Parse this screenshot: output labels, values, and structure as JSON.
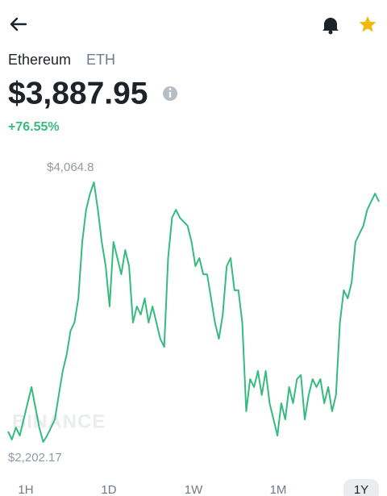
{
  "asset": {
    "name": "Ethereum",
    "symbol": "ETH"
  },
  "price": "$3,887.95",
  "change": "+76.55%",
  "watermark": "BINANCE",
  "time_ranges": [
    "1H",
    "1D",
    "1W",
    "1M",
    "1Y"
  ],
  "selected_range": "1Y",
  "chart_data": {
    "type": "line",
    "color": "#35bb80",
    "ylim": [
      2202.17,
      4064.8
    ],
    "yticks": [
      {
        "value": 4064.8,
        "label": "$4,064.8"
      },
      {
        "value": 2202.17,
        "label": "$2,202.17"
      }
    ],
    "values": [
      2277,
      2220,
      2306,
      2248,
      2364,
      2480,
      2596,
      2451,
      2306,
      2202.17,
      2248,
      2306,
      2364,
      2538,
      2711,
      2827,
      3000,
      3058,
      3232,
      3637,
      3868,
      3984,
      4064.8,
      3868,
      3637,
      3463,
      3174,
      3637,
      3521,
      3405,
      3579,
      3463,
      3058,
      3174,
      3116,
      3232,
      3058,
      3174,
      3058,
      2942,
      2885,
      3521,
      3810,
      3868,
      3810,
      3781,
      3752,
      3637,
      3463,
      3521,
      3405,
      3405,
      3232,
      3058,
      2942,
      3116,
      3463,
      3521,
      3290,
      3290,
      3058,
      2422,
      2653,
      2596,
      2711,
      2538,
      2711,
      2480,
      2364,
      2248,
      2480,
      2364,
      2596,
      2480,
      2653,
      2682,
      2364,
      2538,
      2653,
      2596,
      2653,
      2480,
      2596,
      2422,
      2538,
      3058,
      3290,
      3232,
      3347,
      3637,
      3695,
      3752,
      3868,
      3926,
      3984,
      3926
    ]
  }
}
